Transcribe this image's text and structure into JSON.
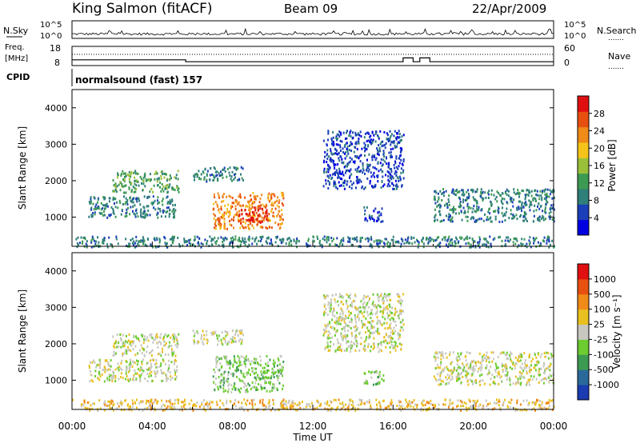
{
  "header": {
    "station": "King Salmon (fitACF)",
    "beam": "Beam 09",
    "date": "22/Apr/2009"
  },
  "side_labels": {
    "nsky": "N.Sky",
    "nsearch": "N.Search",
    "freq_line1": "Freq.",
    "freq_line2": "[MHz]",
    "nave": "Nave",
    "cpid": "CPID",
    "dots": "......."
  },
  "cpid_text": "normalsound (fast) 157",
  "chart_data": [
    {
      "type": "line",
      "panel": "noise",
      "left_ticks": [
        "10^5",
        "10^0"
      ],
      "right_ticks": [
        "10^5",
        "10^0"
      ]
    },
    {
      "type": "line",
      "panel": "frequency",
      "left_ticks": [
        "18",
        "8"
      ],
      "right_ticks": [
        "60",
        "0"
      ],
      "x": [
        "00:00",
        "05:20",
        "05:40",
        "16:30",
        "17:00",
        "17:20",
        "17:50",
        "24:00"
      ],
      "freq_mhz": [
        11,
        11,
        10,
        12,
        10,
        12,
        10,
        10
      ]
    },
    {
      "type": "heatmap",
      "panel": "power",
      "xlabel": "",
      "ylabel": "Slant Range [km]",
      "y_ticks": [
        "1000",
        "2000",
        "3000",
        "4000"
      ],
      "ylim": [
        200,
        4500
      ],
      "colorbar": {
        "label": "Power [dB]",
        "ticks": [
          "4",
          "8",
          "12",
          "16",
          "20",
          "24",
          "28"
        ],
        "colors": [
          "#0000e0",
          "#1a3fb8",
          "#2f7f7a",
          "#3c9a52",
          "#9ac03a",
          "#f4c41a",
          "#f08a18",
          "#e85010",
          "#e01010"
        ]
      },
      "regions": [
        {
          "t": [
            0.8,
            5.2
          ],
          "r": [
            1000,
            1600
          ],
          "level": 2
        },
        {
          "t": [
            2.0,
            5.3
          ],
          "r": [
            1700,
            2300
          ],
          "level": 3
        },
        {
          "t": [
            6.0,
            8.5
          ],
          "r": [
            2000,
            2400
          ],
          "level": 2
        },
        {
          "t": [
            7.0,
            10.5
          ],
          "r": [
            700,
            1700
          ],
          "level": 6
        },
        {
          "t": [
            8.3,
            9.7
          ],
          "r": [
            850,
            1300
          ],
          "level": 8
        },
        {
          "t": [
            12.5,
            16.5
          ],
          "r": [
            1800,
            3400
          ],
          "level": 1
        },
        {
          "t": [
            14.5,
            15.5
          ],
          "r": [
            900,
            1300
          ],
          "level": 1
        },
        {
          "t": [
            18.0,
            24.0
          ],
          "r": [
            900,
            1800
          ],
          "level": 2
        },
        {
          "t": [
            0.0,
            24.0
          ],
          "r": [
            200,
            500
          ],
          "level": 2
        }
      ]
    },
    {
      "type": "heatmap",
      "panel": "velocity",
      "xlabel": "Time UT",
      "ylabel": "Slant Range [km]",
      "x_ticks": [
        "00:00",
        "04:00",
        "08:00",
        "12:00",
        "16:00",
        "20:00",
        "00:00"
      ],
      "y_ticks": [
        "1000",
        "2000",
        "3000",
        "4000"
      ],
      "ylim": [
        200,
        4500
      ],
      "colorbar": {
        "label": "Velocity [m s⁻¹]",
        "ticks": [
          "1000",
          "500",
          "100",
          "25",
          "-25",
          "-100",
          "-500",
          "-1000"
        ],
        "colors": [
          "#1a3cb0",
          "#2a6a9a",
          "#3c9a52",
          "#6ccc30",
          "#c8c8c0",
          "#e8c020",
          "#f08a18",
          "#e85010",
          "#e01010"
        ]
      },
      "regions": [
        {
          "t": [
            0.8,
            5.2
          ],
          "r": [
            1000,
            1600
          ],
          "level": 4
        },
        {
          "t": [
            2.0,
            5.3
          ],
          "r": [
            1700,
            2300
          ],
          "level": 4
        },
        {
          "t": [
            6.0,
            8.5
          ],
          "r": [
            2000,
            2400
          ],
          "level": 4
        },
        {
          "t": [
            7.0,
            10.5
          ],
          "r": [
            700,
            1700
          ],
          "level": 3
        },
        {
          "t": [
            12.5,
            16.5
          ],
          "r": [
            1800,
            3400
          ],
          "level": 4
        },
        {
          "t": [
            14.5,
            15.5
          ],
          "r": [
            900,
            1300
          ],
          "level": 3
        },
        {
          "t": [
            18.0,
            24.0
          ],
          "r": [
            900,
            1800
          ],
          "level": 4
        },
        {
          "t": [
            0.0,
            24.0
          ],
          "r": [
            200,
            500
          ],
          "level": 5
        }
      ]
    }
  ]
}
